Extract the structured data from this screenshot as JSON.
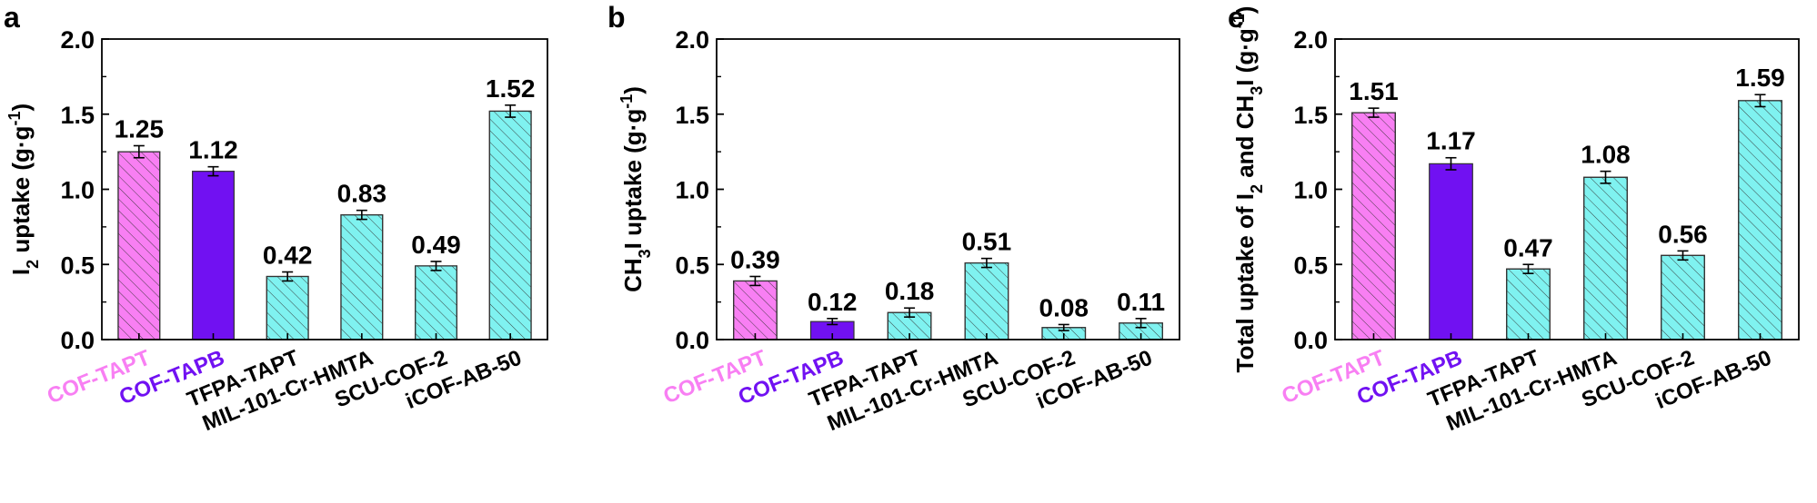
{
  "chart_data": [
    {
      "type": "bar",
      "panel": "a",
      "ylabel_main": "I",
      "ylabel_sub": "2",
      "ylabel_rest": " uptake (g·g",
      "ylabel_sup": "-1",
      "ylabel_end": ")",
      "ylim": [
        0,
        2.0
      ],
      "yticks": [
        "0.0",
        "0.5",
        "1.0",
        "1.5",
        "2.0"
      ],
      "categories": [
        "COF-TAPT",
        "COF-TAPB",
        "TFPA-TAPT",
        "MIL-101-Cr-HMTA",
        "SCU-COF-2",
        "iCOF-AB-50"
      ],
      "values": [
        1.25,
        1.12,
        0.42,
        0.83,
        0.49,
        1.52
      ],
      "labels": [
        "1.25",
        "1.12",
        "0.42",
        "0.83",
        "0.49",
        "1.52"
      ],
      "errors": [
        0.04,
        0.03,
        0.03,
        0.03,
        0.03,
        0.04
      ]
    },
    {
      "type": "bar",
      "panel": "b",
      "ylabel_main": "CH",
      "ylabel_sub": "3",
      "ylabel_rest": "I uptake (g·g",
      "ylabel_sup": "-1",
      "ylabel_end": ")",
      "ylim": [
        0,
        2.0
      ],
      "yticks": [
        "0.0",
        "0.5",
        "1.0",
        "1.5",
        "2.0"
      ],
      "categories": [
        "COF-TAPT",
        "COF-TAPB",
        "TFPA-TAPT",
        "MIL-101-Cr-HMTA",
        "SCU-COF-2",
        "iCOF-AB-50"
      ],
      "values": [
        0.39,
        0.12,
        0.18,
        0.51,
        0.08,
        0.11
      ],
      "labels": [
        "0.39",
        "0.12",
        "0.18",
        "0.51",
        "0.08",
        "0.11"
      ],
      "errors": [
        0.03,
        0.02,
        0.03,
        0.03,
        0.02,
        0.03
      ]
    },
    {
      "type": "bar",
      "panel": "c",
      "ylabel_main": "Total uptake of I",
      "ylabel_sub": "2",
      "ylabel_rest": " and CH",
      "ylabel_sub2": "3",
      "ylabel_rest2": "I (g·g",
      "ylabel_sup": "-1",
      "ylabel_end": ")",
      "ylim": [
        0,
        2.0
      ],
      "yticks": [
        "0.0",
        "0.5",
        "1.0",
        "1.5",
        "2.0"
      ],
      "categories": [
        "COF-TAPT",
        "COF-TAPB",
        "TFPA-TAPT",
        "MIL-101-Cr-HMTA",
        "SCU-COF-2",
        "iCOF-AB-50"
      ],
      "values": [
        1.51,
        1.17,
        0.47,
        1.08,
        0.56,
        1.59
      ],
      "labels": [
        "1.51",
        "1.17",
        "0.47",
        "1.08",
        "0.56",
        "1.59"
      ],
      "errors": [
        0.03,
        0.04,
        0.03,
        0.04,
        0.03,
        0.04
      ]
    }
  ],
  "colors": {
    "bar_fills": [
      "#f87ff3",
      "#7111f2",
      "#7ff2f0",
      "#7ff2f0",
      "#7ff2f0",
      "#7ff2f0"
    ],
    "label_colors": [
      "#f87ff3",
      "#7111f2",
      "#000000",
      "#000000",
      "#000000",
      "#000000"
    ],
    "hatched": [
      true,
      false,
      true,
      true,
      true,
      true
    ]
  }
}
